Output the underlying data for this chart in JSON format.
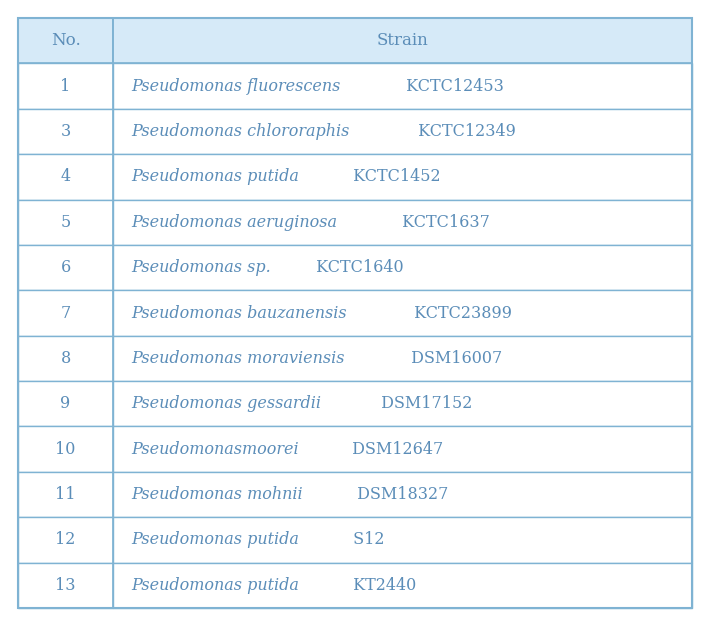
{
  "rows": [
    {
      "no": "1",
      "strain_italic": "Pseudomonas fluorescens",
      "strain_plain": " KCTC12453"
    },
    {
      "no": "3",
      "strain_italic": "Pseudomonas chlororaphis",
      "strain_plain": " KCTC12349"
    },
    {
      "no": "4",
      "strain_italic": "Pseudomonas putida",
      "strain_plain": " KCTC1452"
    },
    {
      "no": "5",
      "strain_italic": "Pseudomonas aeruginosa",
      "strain_plain": " KCTC1637"
    },
    {
      "no": "6",
      "strain_italic": "Pseudomonas sp.",
      "strain_plain": " KCTC1640"
    },
    {
      "no": "7",
      "strain_italic": "Pseudomonas bauzanensis",
      "strain_plain": " KCTC23899"
    },
    {
      "no": "8",
      "strain_italic": "Pseudomonas moraviensis",
      "strain_plain": " DSM16007"
    },
    {
      "no": "9",
      "strain_italic": "Pseudomonas gessardii",
      "strain_plain": " DSM17152"
    },
    {
      "no": "10",
      "strain_italic": "Pseudomonasmoorei",
      "strain_plain": " DSM12647"
    },
    {
      "no": "11",
      "strain_italic": "Pseudomonas mohnii",
      "strain_plain": " DSM18327"
    },
    {
      "no": "12",
      "strain_italic": "Pseudomonas putida",
      "strain_plain": " S12"
    },
    {
      "no": "13",
      "strain_italic": "Pseudomonas putida",
      "strain_plain": " KT2440"
    }
  ],
  "header_no": "No.",
  "header_strain": "Strain",
  "header_bg": "#d6eaf8",
  "row_bg": "#ffffff",
  "border_color": "#7fb3d3",
  "text_color": "#5b8db8",
  "font_size": 11.5,
  "header_font_size": 12,
  "fig_width": 7.1,
  "fig_height": 6.26
}
